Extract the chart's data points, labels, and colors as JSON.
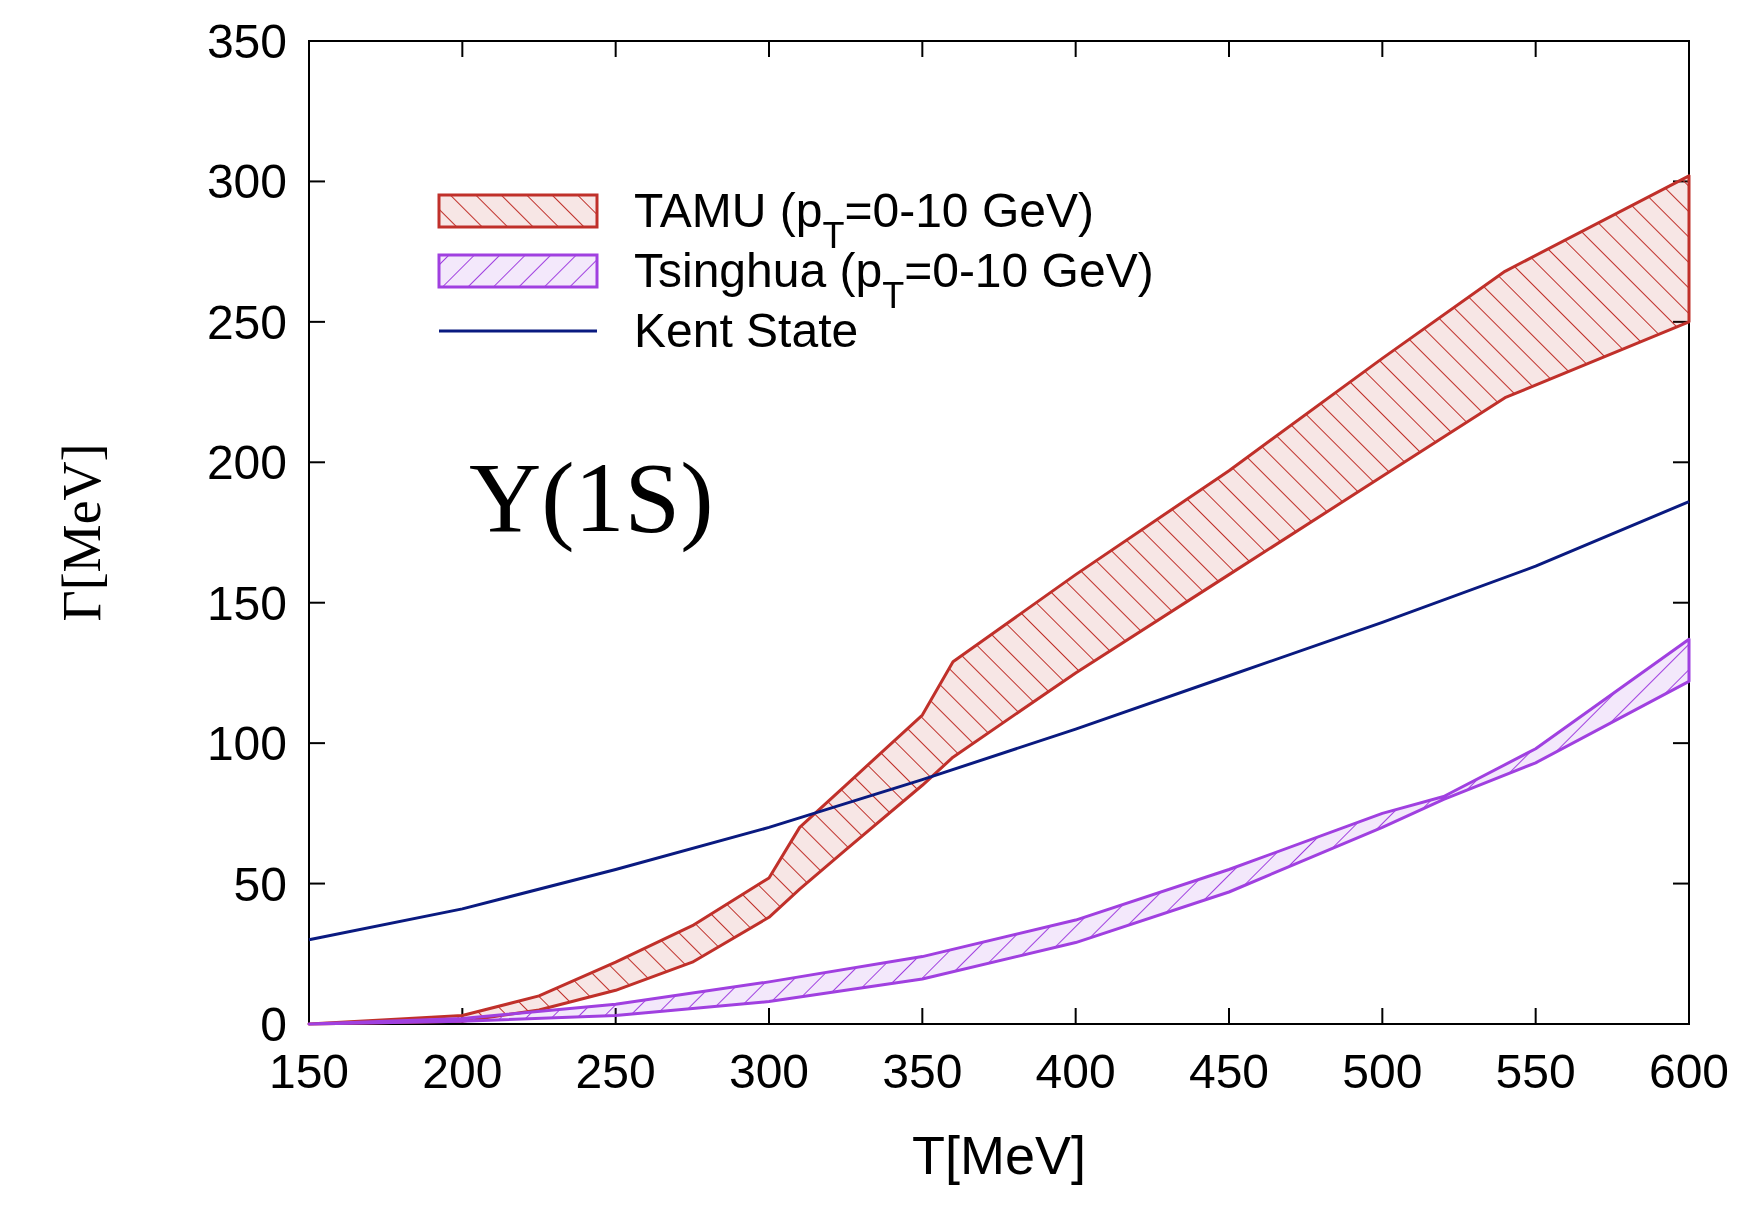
{
  "chart_data": {
    "type": "area",
    "xlabel": "T[MeV]",
    "ylabel": "Γ[MeV]",
    "xlim": [
      150,
      600
    ],
    "ylim": [
      0,
      350
    ],
    "xticks": [
      150,
      200,
      250,
      300,
      350,
      400,
      450,
      500,
      550,
      600
    ],
    "yticks": [
      0,
      50,
      100,
      150,
      200,
      250,
      300,
      350
    ],
    "legend": "top left",
    "grid": false,
    "annotations": [
      "Υ(1S)"
    ],
    "series": [
      {
        "name": "TAMU (p$_{T}$=0-10 GeV)",
        "type": "area",
        "color": "#c0302a",
        "x": [
          150,
          200,
          225,
          250,
          275,
          300,
          310,
          325,
          350,
          360,
          400,
          450,
          500,
          540,
          600
        ],
        "values": [
          null,
          null,
          null,
          null,
          null,
          null,
          null,
          null,
          null,
          null,
          null,
          null,
          null,
          null,
          null
        ],
        "upper": [
          0,
          3,
          10,
          22,
          35,
          52,
          70,
          85,
          110,
          129,
          160,
          197,
          237,
          268,
          302
        ],
        "lower": [
          0,
          1,
          5,
          12,
          22,
          38,
          48,
          62,
          85,
          95,
          125,
          160,
          195,
          223,
          250
        ]
      },
      {
        "name": "Tsinghua (p$_{T}$=0-10 GeV)",
        "type": "area",
        "color": "#a040e0",
        "x": [
          150,
          200,
          250,
          300,
          350,
          400,
          450,
          500,
          520,
          550,
          600
        ],
        "values": [
          null,
          null,
          null,
          null,
          null,
          null,
          null,
          null,
          null,
          null,
          null
        ],
        "upper": [
          0,
          2,
          7,
          15,
          24,
          37,
          55,
          75,
          81,
          98,
          137
        ],
        "lower": [
          0,
          1,
          3,
          8,
          16,
          29,
          47,
          70,
          80,
          93,
          122
        ]
      },
      {
        "name": "Kent State",
        "type": "line",
        "color": "#0a1a80",
        "x": [
          150,
          200,
          250,
          300,
          350,
          400,
          450,
          500,
          550,
          600
        ],
        "values": [
          30,
          41,
          55,
          70,
          87,
          105,
          124,
          143,
          163,
          186
        ]
      }
    ]
  }
}
